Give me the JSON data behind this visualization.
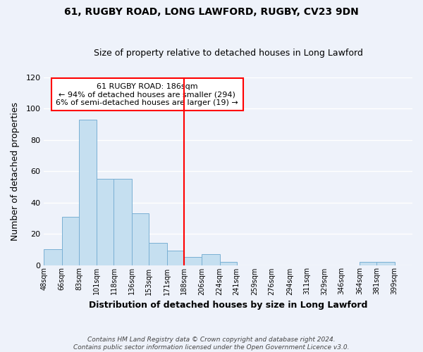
{
  "title": "61, RUGBY ROAD, LONG LAWFORD, RUGBY, CV23 9DN",
  "subtitle": "Size of property relative to detached houses in Long Lawford",
  "xlabel": "Distribution of detached houses by size in Long Lawford",
  "ylabel": "Number of detached properties",
  "bar_color": "#c5dff0",
  "bar_edge_color": "#7ab0d4",
  "background_color": "#eef2fa",
  "grid_color": "white",
  "vline_x": 188,
  "vline_color": "red",
  "categories": [
    "48sqm",
    "66sqm",
    "83sqm",
    "101sqm",
    "118sqm",
    "136sqm",
    "153sqm",
    "171sqm",
    "188sqm",
    "206sqm",
    "224sqm",
    "241sqm",
    "259sqm",
    "276sqm",
    "294sqm",
    "311sqm",
    "329sqm",
    "346sqm",
    "364sqm",
    "381sqm",
    "399sqm"
  ],
  "bin_edges": [
    48,
    66,
    83,
    101,
    118,
    136,
    153,
    171,
    188,
    206,
    224,
    241,
    259,
    276,
    294,
    311,
    329,
    346,
    364,
    381,
    399,
    417
  ],
  "values": [
    10,
    31,
    93,
    55,
    55,
    33,
    14,
    9,
    5,
    7,
    2,
    0,
    0,
    0,
    0,
    0,
    0,
    0,
    2,
    2,
    0
  ],
  "ylim": [
    0,
    120
  ],
  "yticks": [
    0,
    20,
    40,
    60,
    80,
    100,
    120
  ],
  "annotation_title": "61 RUGBY ROAD: 186sqm",
  "annotation_line1": "← 94% of detached houses are smaller (294)",
  "annotation_line2": "6% of semi-detached houses are larger (19) →",
  "annotation_box_color": "white",
  "annotation_box_edge": "red",
  "footer1": "Contains HM Land Registry data © Crown copyright and database right 2024.",
  "footer2": "Contains public sector information licensed under the Open Government Licence v3.0."
}
